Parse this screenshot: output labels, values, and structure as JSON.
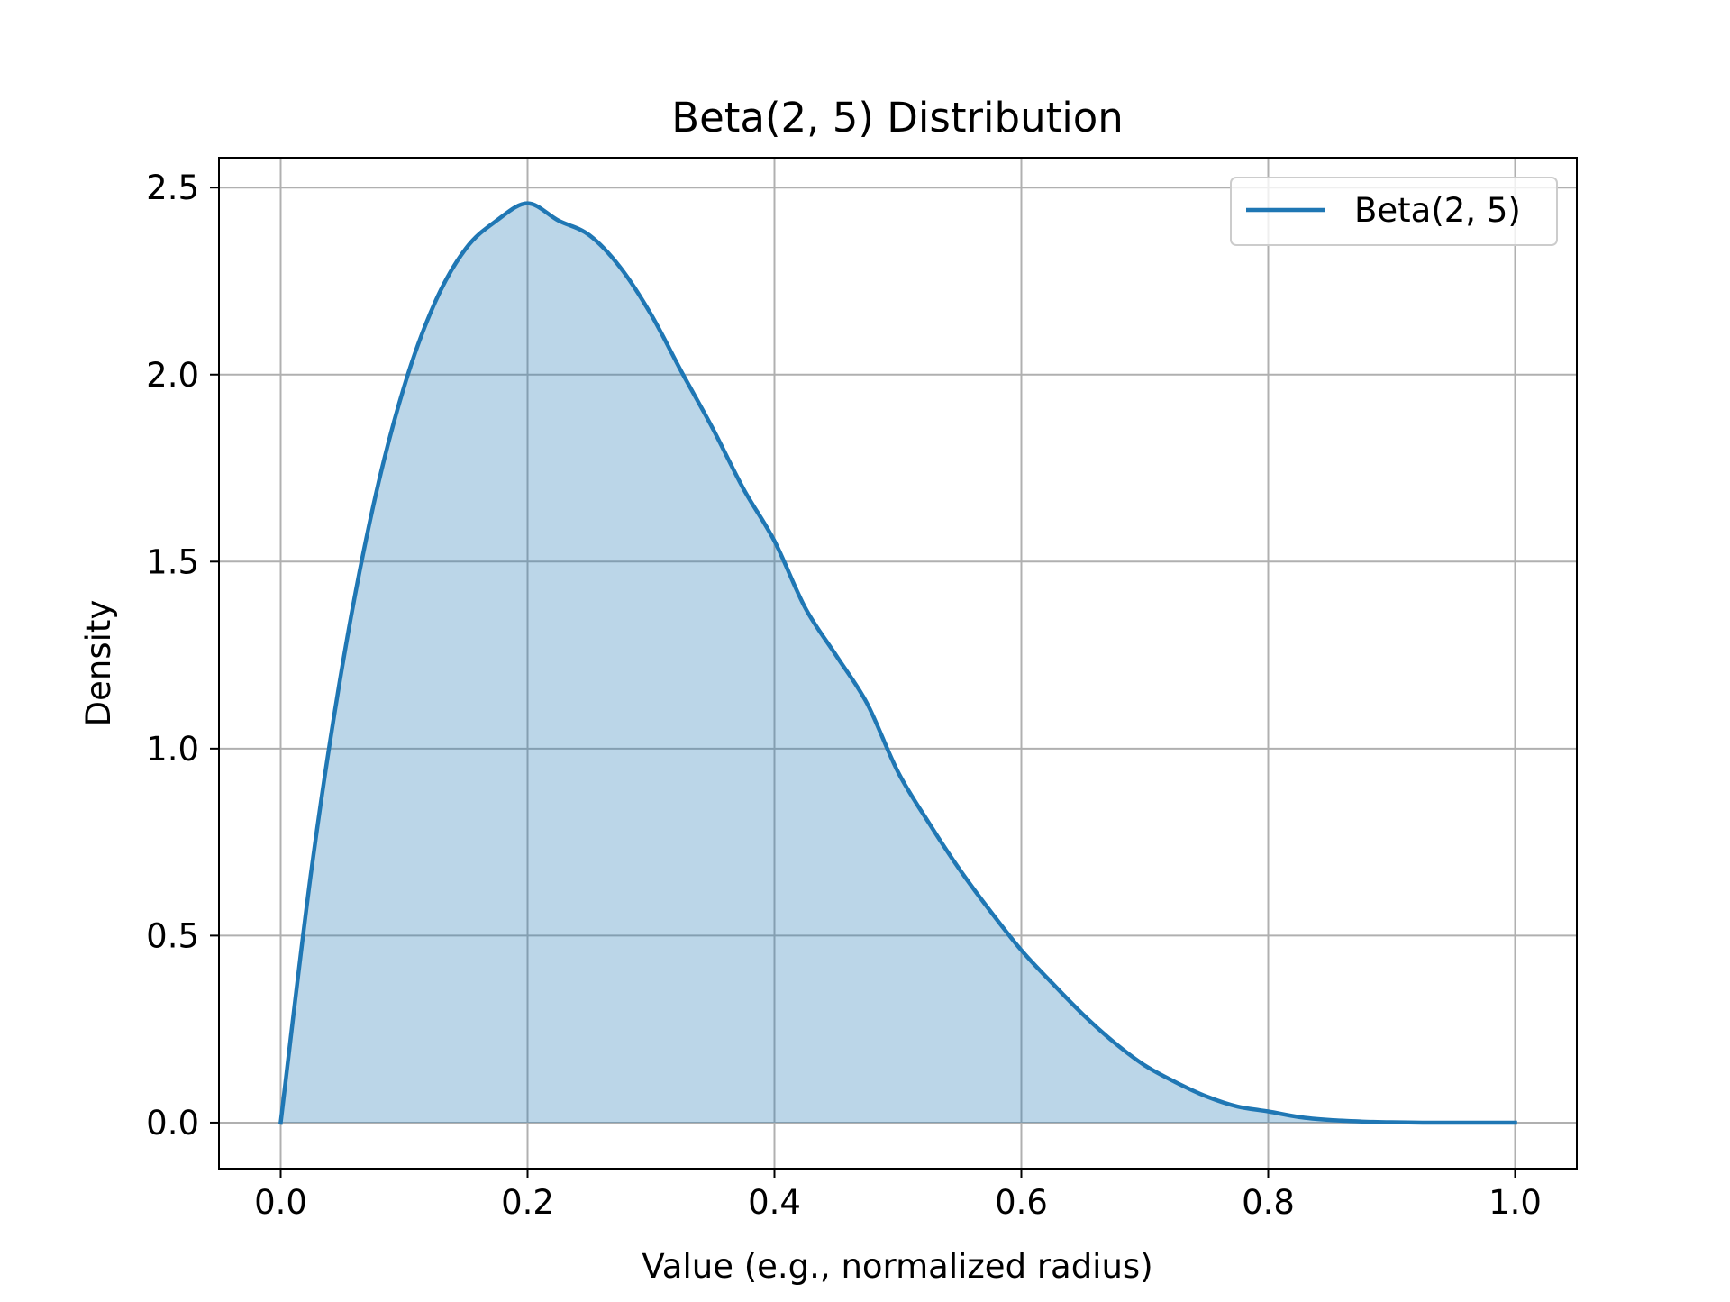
{
  "chart_data": {
    "type": "area",
    "title": "Beta(2, 5) Distribution",
    "xlabel": "Value (e.g., normalized radius)",
    "ylabel": "Density",
    "xlim": [
      -0.05,
      1.05
    ],
    "ylim": [
      -0.123,
      2.58
    ],
    "x_ticks": [
      "0.0",
      "0.2",
      "0.4",
      "0.6",
      "0.8",
      "1.0"
    ],
    "y_ticks": [
      "0.0",
      "0.5",
      "1.0",
      "1.5",
      "2.0",
      "2.5"
    ],
    "grid": true,
    "legend": {
      "placement": "top-right",
      "entries": [
        "Beta(2, 5)"
      ]
    },
    "series": [
      {
        "name": "Beta(2, 5)",
        "color": "#1f77b4",
        "fill_color": "#1f77b4",
        "fill_opacity": 0.3,
        "x": [
          0.0,
          0.025,
          0.05,
          0.075,
          0.1,
          0.125,
          0.15,
          0.175,
          0.2,
          0.225,
          0.25,
          0.275,
          0.3,
          0.325,
          0.35,
          0.375,
          0.4,
          0.425,
          0.45,
          0.475,
          0.5,
          0.525,
          0.55,
          0.575,
          0.6,
          0.625,
          0.65,
          0.675,
          0.7,
          0.725,
          0.75,
          0.775,
          0.8,
          0.825,
          0.85,
          0.875,
          0.9,
          0.925,
          0.95,
          0.975,
          1.0
        ],
        "y": [
          0.0,
          0.678,
          1.222,
          1.649,
          1.968,
          2.193,
          2.337,
          2.412,
          2.458,
          2.412,
          2.373,
          2.287,
          2.161,
          2.006,
          1.856,
          1.694,
          1.555,
          1.376,
          1.249,
          1.121,
          0.938,
          0.802,
          0.677,
          0.565,
          0.461,
          0.373,
          0.289,
          0.215,
          0.153,
          0.108,
          0.07,
          0.043,
          0.03,
          0.015,
          0.007,
          0.003,
          0.001,
          0.0,
          0.0,
          0.0,
          0.0
        ]
      }
    ]
  }
}
